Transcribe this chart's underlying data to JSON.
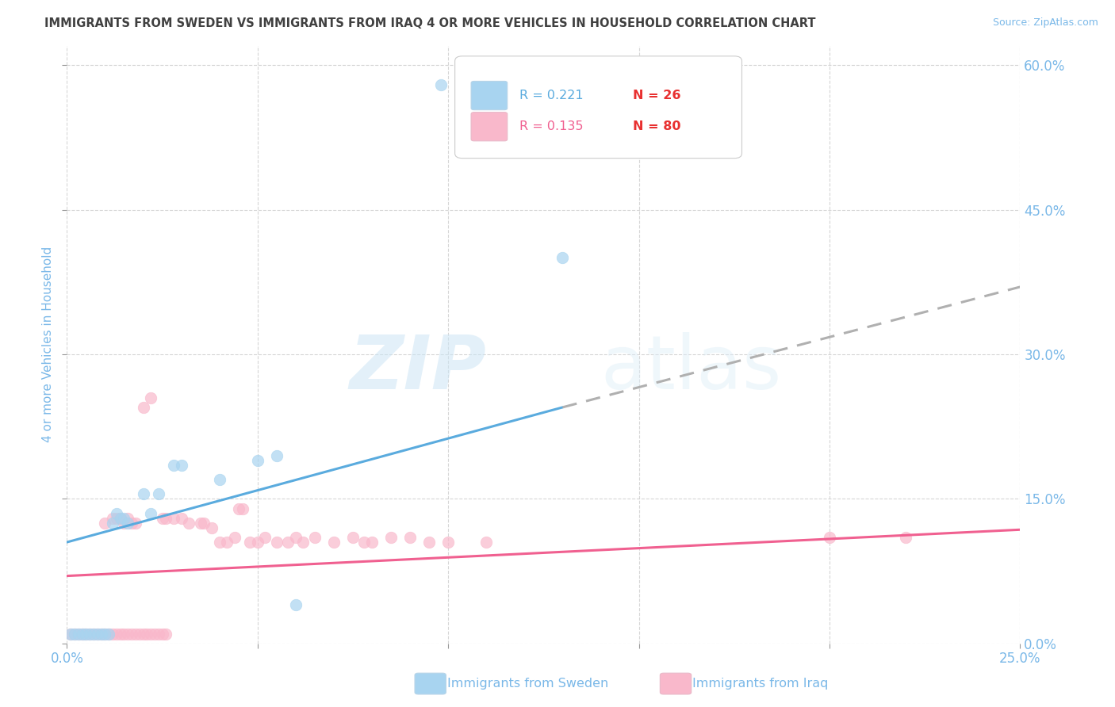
{
  "title": "IMMIGRANTS FROM SWEDEN VS IMMIGRANTS FROM IRAQ 4 OR MORE VEHICLES IN HOUSEHOLD CORRELATION CHART",
  "source": "Source: ZipAtlas.com",
  "ylabel": "4 or more Vehicles in Household",
  "xlim": [
    0.0,
    0.25
  ],
  "ylim": [
    0.0,
    0.62
  ],
  "xticks": [
    0.0,
    0.05,
    0.1,
    0.15,
    0.2,
    0.25
  ],
  "yticks": [
    0.0,
    0.15,
    0.3,
    0.45,
    0.6
  ],
  "ytick_labels_right": [
    "0.0%",
    "15.0%",
    "30.0%",
    "45.0%",
    "60.0%"
  ],
  "xtick_labels": [
    "0.0%",
    "",
    "",
    "",
    "",
    "25.0%"
  ],
  "sweden_color": "#a8d4f0",
  "iraq_color": "#f9b8cb",
  "sweden_line_color": "#5aabde",
  "iraq_line_color": "#f06090",
  "trendline_ext_color": "#b0b0b0",
  "background_color": "#ffffff",
  "grid_color": "#cccccc",
  "watermark_zip": "ZIP",
  "watermark_atlas": "atlas",
  "title_color": "#404040",
  "axis_label_color": "#7ab8e8",
  "sweden_trendline": [
    [
      0.0,
      0.105
    ],
    [
      0.13,
      0.245
    ]
  ],
  "sweden_trendline_ext": [
    [
      0.13,
      0.245
    ],
    [
      0.25,
      0.37
    ]
  ],
  "iraq_trendline": [
    [
      0.0,
      0.07
    ],
    [
      0.25,
      0.118
    ]
  ],
  "sweden_scatter": [
    [
      0.001,
      0.01
    ],
    [
      0.002,
      0.01
    ],
    [
      0.003,
      0.01
    ],
    [
      0.004,
      0.01
    ],
    [
      0.005,
      0.01
    ],
    [
      0.006,
      0.01
    ],
    [
      0.007,
      0.01
    ],
    [
      0.008,
      0.01
    ],
    [
      0.009,
      0.01
    ],
    [
      0.01,
      0.01
    ],
    [
      0.011,
      0.01
    ],
    [
      0.012,
      0.125
    ],
    [
      0.013,
      0.135
    ],
    [
      0.014,
      0.13
    ],
    [
      0.015,
      0.13
    ],
    [
      0.016,
      0.125
    ],
    [
      0.02,
      0.155
    ],
    [
      0.022,
      0.135
    ],
    [
      0.024,
      0.155
    ],
    [
      0.028,
      0.185
    ],
    [
      0.03,
      0.185
    ],
    [
      0.04,
      0.17
    ],
    [
      0.05,
      0.19
    ],
    [
      0.055,
      0.195
    ],
    [
      0.06,
      0.04
    ],
    [
      0.098,
      0.58
    ],
    [
      0.13,
      0.4
    ]
  ],
  "iraq_scatter": [
    [
      0.001,
      0.01
    ],
    [
      0.002,
      0.01
    ],
    [
      0.003,
      0.01
    ],
    [
      0.004,
      0.01
    ],
    [
      0.005,
      0.01
    ],
    [
      0.006,
      0.01
    ],
    [
      0.007,
      0.01
    ],
    [
      0.008,
      0.01
    ],
    [
      0.009,
      0.01
    ],
    [
      0.01,
      0.01
    ],
    [
      0.011,
      0.01
    ],
    [
      0.012,
      0.01
    ],
    [
      0.013,
      0.01
    ],
    [
      0.014,
      0.01
    ],
    [
      0.015,
      0.01
    ],
    [
      0.016,
      0.01
    ],
    [
      0.017,
      0.01
    ],
    [
      0.018,
      0.01
    ],
    [
      0.019,
      0.01
    ],
    [
      0.02,
      0.01
    ],
    [
      0.021,
      0.01
    ],
    [
      0.022,
      0.01
    ],
    [
      0.023,
      0.01
    ],
    [
      0.024,
      0.01
    ],
    [
      0.025,
      0.01
    ],
    [
      0.026,
      0.01
    ],
    [
      0.01,
      0.125
    ],
    [
      0.012,
      0.13
    ],
    [
      0.013,
      0.13
    ],
    [
      0.014,
      0.13
    ],
    [
      0.015,
      0.125
    ],
    [
      0.016,
      0.13
    ],
    [
      0.017,
      0.125
    ],
    [
      0.018,
      0.125
    ],
    [
      0.02,
      0.245
    ],
    [
      0.022,
      0.255
    ],
    [
      0.025,
      0.13
    ],
    [
      0.026,
      0.13
    ],
    [
      0.028,
      0.13
    ],
    [
      0.03,
      0.13
    ],
    [
      0.032,
      0.125
    ],
    [
      0.035,
      0.125
    ],
    [
      0.036,
      0.125
    ],
    [
      0.038,
      0.12
    ],
    [
      0.04,
      0.105
    ],
    [
      0.042,
      0.105
    ],
    [
      0.044,
      0.11
    ],
    [
      0.045,
      0.14
    ],
    [
      0.046,
      0.14
    ],
    [
      0.048,
      0.105
    ],
    [
      0.05,
      0.105
    ],
    [
      0.052,
      0.11
    ],
    [
      0.055,
      0.105
    ],
    [
      0.058,
      0.105
    ],
    [
      0.06,
      0.11
    ],
    [
      0.062,
      0.105
    ],
    [
      0.065,
      0.11
    ],
    [
      0.07,
      0.105
    ],
    [
      0.075,
      0.11
    ],
    [
      0.078,
      0.105
    ],
    [
      0.08,
      0.105
    ],
    [
      0.085,
      0.11
    ],
    [
      0.09,
      0.11
    ],
    [
      0.095,
      0.105
    ],
    [
      0.1,
      0.105
    ],
    [
      0.11,
      0.105
    ],
    [
      0.2,
      0.11
    ],
    [
      0.22,
      0.11
    ]
  ]
}
